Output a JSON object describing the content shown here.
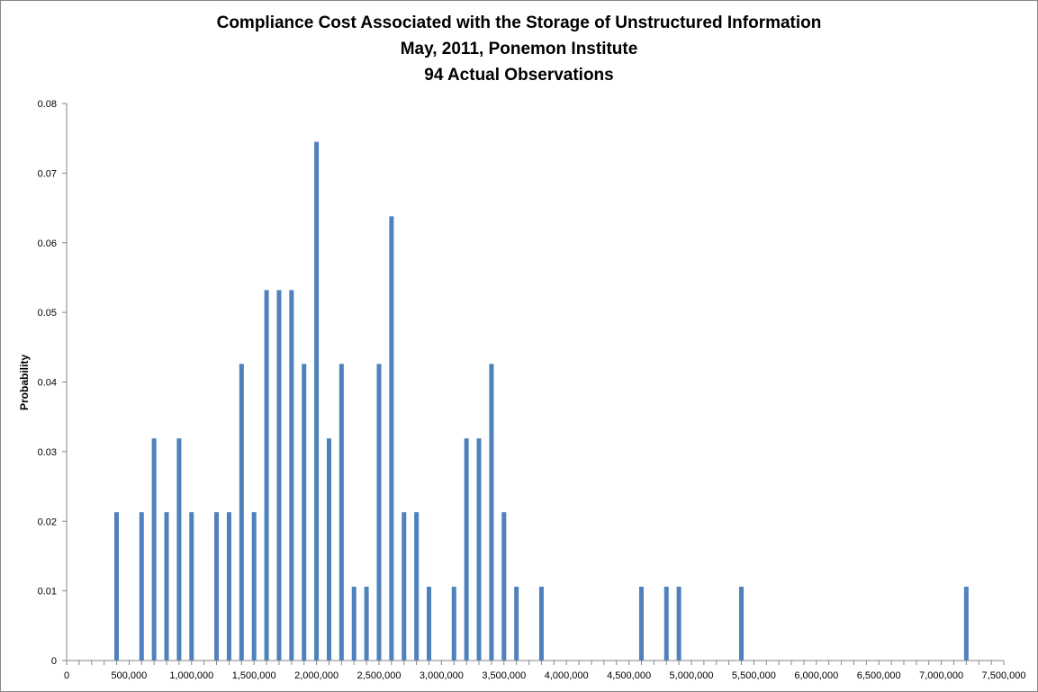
{
  "chart_data": {
    "type": "bar",
    "title": "Compliance Cost Associated with the Storage of Unstructured Information",
    "subtitle": [
      "May, 2011, Ponemon Institute",
      "94 Actual Observations"
    ],
    "xlabel": "",
    "ylabel": "Probability",
    "xlim": [
      0,
      7500000
    ],
    "ylim": [
      0,
      0.08
    ],
    "y_ticks": [
      "0",
      "0.01",
      "0.02",
      "0.03",
      "0.04",
      "0.05",
      "0.06",
      "0.07",
      "0.08"
    ],
    "x_ticks": [
      "0",
      "500,000",
      "1,000,000",
      "1,500,000",
      "2,000,000",
      "2,500,000",
      "3,000,000",
      "3,500,000",
      "4,000,000",
      "4,500,000",
      "5,000,000",
      "5,500,000",
      "6,000,000",
      "6,500,000",
      "7,000,000",
      "7,500,000"
    ],
    "grid": false,
    "bar_color": "#4F81BD",
    "series": [
      {
        "x": [
          400000,
          600000,
          700000,
          800000,
          900000,
          1000000,
          1200000,
          1300000,
          1400000,
          1500000,
          1600000,
          1700000,
          1800000,
          1900000,
          2000000,
          2100000,
          2200000,
          2300000,
          2400000,
          2500000,
          2600000,
          2700000,
          2800000,
          2900000,
          3100000,
          3200000,
          3300000,
          3400000,
          3500000,
          3600000,
          3800000,
          4600000,
          4800000,
          4900000,
          5400000,
          7200000
        ],
        "values": [
          0.0213,
          0.0213,
          0.0319,
          0.0213,
          0.0319,
          0.0213,
          0.0213,
          0.0213,
          0.0426,
          0.0213,
          0.0532,
          0.0532,
          0.0532,
          0.0426,
          0.0745,
          0.0319,
          0.0426,
          0.0106,
          0.0106,
          0.0426,
          0.0638,
          0.0213,
          0.0213,
          0.0106,
          0.0106,
          0.0319,
          0.0319,
          0.0426,
          0.0213,
          0.0106,
          0.0106,
          0.0106,
          0.0106,
          0.0106,
          0.0106,
          0.0106
        ]
      }
    ]
  }
}
